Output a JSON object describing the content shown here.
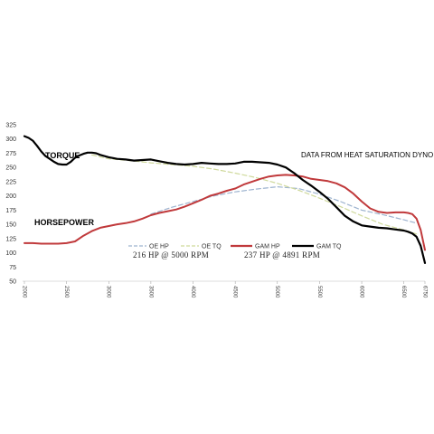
{
  "chart_data": {
    "type": "line",
    "ylim": [
      50,
      325
    ],
    "y_ticks": [
      50,
      75,
      100,
      125,
      150,
      175,
      200,
      225,
      250,
      275,
      300,
      325
    ],
    "xlim": [
      2000,
      6750
    ],
    "x_tick_values": [
      2000,
      2500,
      3000,
      3500,
      4000,
      4500,
      5000,
      5500,
      6000,
      6500,
      6750
    ],
    "x_tick_labels": [
      "2000",
      "2500",
      "3000",
      "3500",
      "4000",
      "4500",
      "5000",
      "5500",
      "6000",
      "6500",
      "6750"
    ],
    "grid": false,
    "legend_position": "center",
    "annotations": {
      "torque": "TORQUE",
      "horsepower": "HORSEPOWER",
      "source_note": "DATA FROM HEAT SATURATION DYNO",
      "oe_peak": "216 HP @ 5000 RPM",
      "gam_peak": "237 HP @ 4891 RPM"
    },
    "series": [
      {
        "name": "OE HP",
        "color": "#9db3cf",
        "dash": "dashed",
        "x": [
          3500,
          3750,
          4000,
          4250,
          4500,
          4750,
          5000,
          5250,
          5500,
          5750,
          6000,
          6250,
          6500,
          6650
        ],
        "y": [
          168,
          180,
          190,
          200,
          207,
          212,
          216,
          213,
          203,
          190,
          175,
          167,
          158,
          152
        ]
      },
      {
        "name": "OE TQ",
        "color": "#cfd99b",
        "dash": "dashed",
        "x": [
          2800,
          3000,
          3250,
          3500,
          3750,
          4000,
          4250,
          4500,
          4750,
          5000,
          5250,
          5500,
          5750,
          6000,
          6250,
          6500,
          6650
        ],
        "y": [
          272,
          265,
          262,
          258,
          255,
          252,
          247,
          240,
          232,
          222,
          210,
          196,
          181,
          165,
          150,
          140,
          133
        ]
      },
      {
        "name": "GAM HP",
        "color": "#c0393b",
        "dash": "solid",
        "x": [
          2000,
          2100,
          2200,
          2300,
          2400,
          2500,
          2600,
          2700,
          2800,
          2900,
          3000,
          3100,
          3200,
          3300,
          3400,
          3500,
          3600,
          3700,
          3800,
          3900,
          4000,
          4100,
          4200,
          4300,
          4400,
          4500,
          4600,
          4700,
          4800,
          4900,
          5000,
          5100,
          5200,
          5300,
          5400,
          5500,
          5600,
          5700,
          5800,
          5900,
          6000,
          6100,
          6200,
          6300,
          6400,
          6500,
          6550,
          6600,
          6650,
          6700,
          6750
        ],
        "y": [
          117,
          117,
          116,
          116,
          116,
          117,
          120,
          130,
          138,
          144,
          147,
          150,
          152,
          155,
          160,
          166,
          170,
          173,
          176,
          181,
          187,
          193,
          200,
          204,
          209,
          213,
          220,
          225,
          230,
          234,
          236,
          237,
          236,
          234,
          230,
          228,
          226,
          222,
          215,
          204,
          190,
          178,
          172,
          170,
          171,
          171,
          170,
          168,
          160,
          140,
          105
        ]
      },
      {
        "name": "GAM TQ",
        "color": "#000000",
        "dash": "solid",
        "x": [
          2000,
          2050,
          2100,
          2150,
          2200,
          2250,
          2300,
          2350,
          2400,
          2450,
          2500,
          2550,
          2600,
          2650,
          2700,
          2750,
          2800,
          2850,
          2900,
          3000,
          3100,
          3200,
          3300,
          3400,
          3500,
          3600,
          3700,
          3800,
          3900,
          4000,
          4100,
          4200,
          4300,
          4400,
          4500,
          4600,
          4700,
          4800,
          4900,
          5000,
          5100,
          5200,
          5300,
          5400,
          5500,
          5600,
          5700,
          5800,
          5900,
          6000,
          6100,
          6200,
          6300,
          6400,
          6500,
          6550,
          6600,
          6650,
          6700,
          6750
        ],
        "y": [
          305,
          302,
          297,
          288,
          278,
          270,
          265,
          260,
          256,
          255,
          255,
          260,
          267,
          271,
          274,
          276,
          276,
          275,
          272,
          268,
          265,
          264,
          262,
          263,
          264,
          261,
          258,
          256,
          255,
          256,
          258,
          257,
          256,
          256,
          257,
          260,
          260,
          259,
          258,
          255,
          250,
          240,
          228,
          218,
          207,
          195,
          180,
          165,
          155,
          148,
          146,
          144,
          143,
          141,
          139,
          137,
          134,
          128,
          112,
          82
        ]
      }
    ]
  }
}
